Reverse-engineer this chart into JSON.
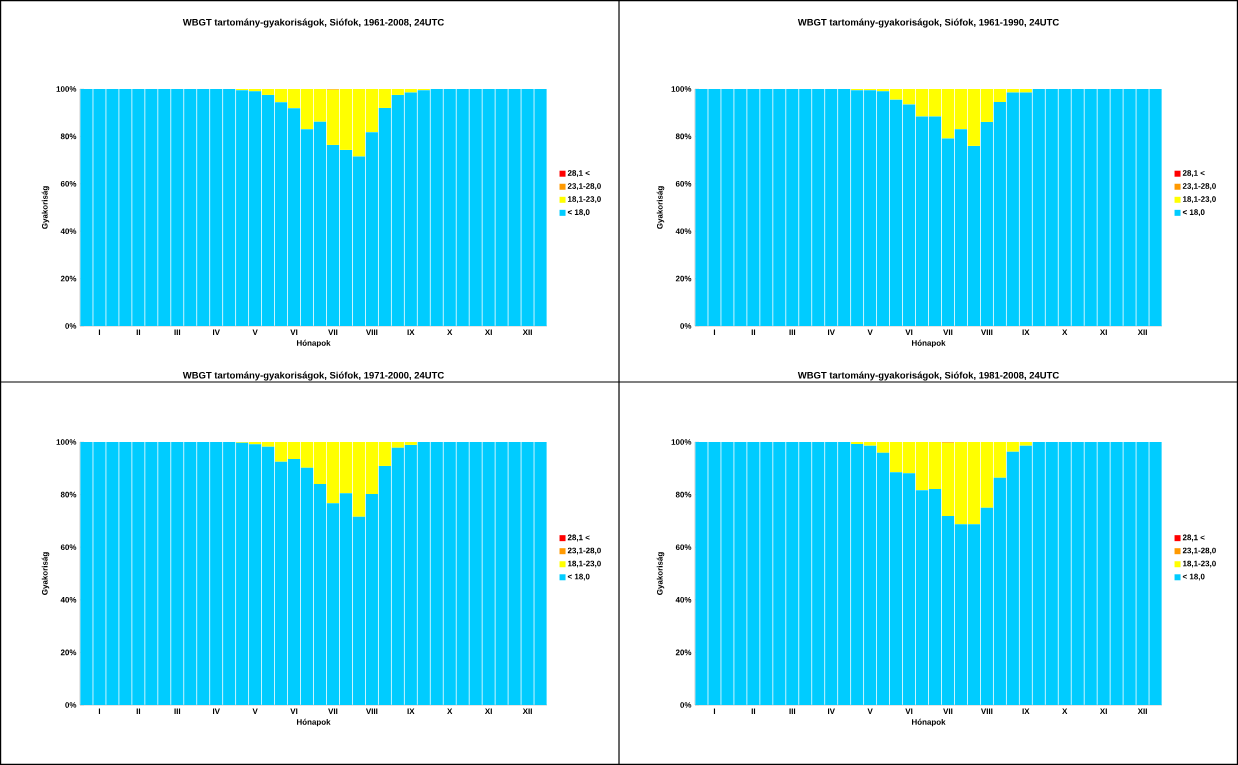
{
  "chart_data": [
    {
      "type": "bar",
      "stacked": true,
      "title": "WBGT tartomány-gyakoriságok, Siófok, 1961-2008, 24UTC",
      "xlabel": "Hónapok",
      "ylabel": "Gyakoriság",
      "legend": "right",
      "categories": [
        null,
        "I",
        null,
        null,
        "II",
        null,
        null,
        "III",
        null,
        null,
        "IV",
        null,
        null,
        "V",
        null,
        null,
        "VI",
        null,
        null,
        "VII",
        null,
        null,
        "VIII",
        null,
        null,
        "IX",
        null,
        null,
        "X",
        null,
        null,
        "XI",
        null,
        null,
        "XII",
        null
      ],
      "ylim": [
        0,
        100
      ],
      "yticks": [
        {
          "value": 0,
          "label": "0%"
        },
        {
          "value": 20,
          "label": "20%"
        },
        {
          "value": 40,
          "label": "40%"
        },
        {
          "value": 60,
          "label": "60%"
        },
        {
          "value": 80,
          "label": "80%"
        },
        {
          "value": 100,
          "label": "100%"
        }
      ],
      "series": [
        {
          "name": "< 18,0",
          "color": "#00ccff",
          "values": [
            100,
            100,
            100,
            100,
            100,
            100,
            100,
            100,
            100,
            100,
            100,
            100,
            99.5,
            99.0,
            97.5,
            94.4,
            91.9,
            83.0,
            86.2,
            76.4,
            74.3,
            71.5,
            81.8,
            92.0,
            97.5,
            98.5,
            99.5,
            100,
            100,
            100,
            100,
            100,
            100,
            100,
            100,
            100
          ]
        },
        {
          "name": "18,1-23,0",
          "color": "#ffff00",
          "values": [
            0,
            0,
            0,
            0,
            0,
            0,
            0,
            0,
            0,
            0,
            0,
            0,
            0.5,
            1.0,
            2.5,
            5.6,
            8.1,
            17.0,
            13.8,
            23.3,
            25.7,
            28.5,
            18.2,
            8.0,
            2.5,
            1.5,
            0.5,
            0,
            0,
            0,
            0,
            0,
            0,
            0,
            0,
            0
          ]
        },
        {
          "name": "23,1-28,0",
          "color": "#ff9900",
          "values": [
            0,
            0,
            0,
            0,
            0,
            0,
            0,
            0,
            0,
            0,
            0,
            0,
            0,
            0,
            0,
            0,
            0,
            0,
            0,
            0.3,
            0,
            0,
            0,
            0,
            0,
            0,
            0,
            0,
            0,
            0,
            0,
            0,
            0,
            0,
            0,
            0
          ]
        },
        {
          "name": "28,1 <",
          "color": "#ff0000",
          "values": [
            0,
            0,
            0,
            0,
            0,
            0,
            0,
            0,
            0,
            0,
            0,
            0,
            0,
            0,
            0,
            0,
            0,
            0,
            0,
            0,
            0,
            0,
            0,
            0,
            0,
            0,
            0,
            0,
            0,
            0,
            0,
            0,
            0,
            0,
            0,
            0
          ]
        }
      ]
    },
    {
      "type": "bar",
      "stacked": true,
      "title": "WBGT tartomány-gyakoriságok, Siófok, 1961-1990, 24UTC",
      "xlabel": "Hónapok",
      "ylabel": "Gyakoriság",
      "legend": "right",
      "categories": [
        null,
        "I",
        null,
        null,
        "II",
        null,
        null,
        "III",
        null,
        null,
        "IV",
        null,
        null,
        "V",
        null,
        null,
        "VI",
        null,
        null,
        "VII",
        null,
        null,
        "VIII",
        null,
        null,
        "IX",
        null,
        null,
        "X",
        null,
        null,
        "XI",
        null,
        null,
        "XII",
        null
      ],
      "ylim": [
        0,
        100
      ],
      "yticks": [
        {
          "value": 0,
          "label": "0%"
        },
        {
          "value": 20,
          "label": "20%"
        },
        {
          "value": 40,
          "label": "40%"
        },
        {
          "value": 60,
          "label": "60%"
        },
        {
          "value": 80,
          "label": "80%"
        },
        {
          "value": 100,
          "label": "100%"
        }
      ],
      "series": [
        {
          "name": "< 18,0",
          "color": "#00ccff",
          "values": [
            100,
            100,
            100,
            100,
            100,
            100,
            100,
            100,
            100,
            100,
            100,
            100,
            99.5,
            99.5,
            99.0,
            95.5,
            93.5,
            88.4,
            88.4,
            79.1,
            83.0,
            76.0,
            86.1,
            94.5,
            98.5,
            98.5,
            100,
            100,
            100,
            100,
            100,
            100,
            100,
            100,
            100,
            100
          ]
        },
        {
          "name": "18,1-23,0",
          "color": "#ffff00",
          "values": [
            0,
            0,
            0,
            0,
            0,
            0,
            0,
            0,
            0,
            0,
            0,
            0,
            0.5,
            0.5,
            1.0,
            4.5,
            6.5,
            11.6,
            11.6,
            20.9,
            17.0,
            24.0,
            13.9,
            5.5,
            1.5,
            1.5,
            0,
            0,
            0,
            0,
            0,
            0,
            0,
            0,
            0,
            0
          ]
        },
        {
          "name": "23,1-28,0",
          "color": "#ff9900",
          "values": [
            0,
            0,
            0,
            0,
            0,
            0,
            0,
            0,
            0,
            0,
            0,
            0,
            0,
            0,
            0,
            0,
            0,
            0,
            0,
            0,
            0,
            0,
            0,
            0,
            0,
            0,
            0,
            0,
            0,
            0,
            0,
            0,
            0,
            0,
            0,
            0
          ]
        },
        {
          "name": "28,1 <",
          "color": "#ff0000",
          "values": [
            0,
            0,
            0,
            0,
            0,
            0,
            0,
            0,
            0,
            0,
            0,
            0,
            0,
            0,
            0,
            0,
            0,
            0,
            0,
            0,
            0,
            0,
            0,
            0,
            0,
            0,
            0,
            0,
            0,
            0,
            0,
            0,
            0,
            0,
            0,
            0
          ]
        }
      ]
    },
    {
      "type": "bar",
      "stacked": true,
      "title": "WBGT tartomány-gyakoriságok, Siófok, 1971-2000, 24UTC",
      "xlabel": "Hónapok",
      "ylabel": "Gyakoriság",
      "legend": "right",
      "categories": [
        null,
        "I",
        null,
        null,
        "II",
        null,
        null,
        "III",
        null,
        null,
        "IV",
        null,
        null,
        "V",
        null,
        null,
        "VI",
        null,
        null,
        "VII",
        null,
        null,
        "VIII",
        null,
        null,
        "IX",
        null,
        null,
        "X",
        null,
        null,
        "XI",
        null,
        null,
        "XII",
        null
      ],
      "ylim": [
        0,
        100
      ],
      "yticks": [
        {
          "value": 0,
          "label": "0%"
        },
        {
          "value": 20,
          "label": "20%"
        },
        {
          "value": 40,
          "label": "40%"
        },
        {
          "value": 60,
          "label": "60%"
        },
        {
          "value": 80,
          "label": "80%"
        },
        {
          "value": 100,
          "label": "100%"
        }
      ],
      "series": [
        {
          "name": "< 18,0",
          "color": "#00ccff",
          "values": [
            100,
            100,
            100,
            100,
            100,
            100,
            100,
            100,
            100,
            100,
            100,
            100,
            99.7,
            99.1,
            98.2,
            92.5,
            93.5,
            90.2,
            84.0,
            76.7,
            80.5,
            71.6,
            80.2,
            90.9,
            97.8,
            98.9,
            100,
            100,
            100,
            100,
            100,
            100,
            100,
            100,
            100,
            100
          ]
        },
        {
          "name": "18,1-23,0",
          "color": "#ffff00",
          "values": [
            0,
            0,
            0,
            0,
            0,
            0,
            0,
            0,
            0,
            0,
            0,
            0,
            0.3,
            0.9,
            1.8,
            7.5,
            6.5,
            9.8,
            16.0,
            23.3,
            19.5,
            28.4,
            19.8,
            9.1,
            2.2,
            1.1,
            0,
            0,
            0,
            0,
            0,
            0,
            0,
            0,
            0,
            0
          ]
        },
        {
          "name": "23,1-28,0",
          "color": "#ff9900",
          "values": [
            0,
            0,
            0,
            0,
            0,
            0,
            0,
            0,
            0,
            0,
            0,
            0,
            0,
            0,
            0,
            0,
            0,
            0,
            0,
            0,
            0,
            0,
            0,
            0,
            0,
            0,
            0,
            0,
            0,
            0,
            0,
            0,
            0,
            0,
            0,
            0
          ]
        },
        {
          "name": "28,1 <",
          "color": "#ff0000",
          "values": [
            0,
            0,
            0,
            0,
            0,
            0,
            0,
            0,
            0,
            0,
            0,
            0,
            0,
            0,
            0,
            0,
            0,
            0,
            0,
            0,
            0,
            0,
            0,
            0,
            0,
            0,
            0,
            0,
            0,
            0,
            0,
            0,
            0,
            0,
            0,
            0
          ]
        }
      ]
    },
    {
      "type": "bar",
      "stacked": true,
      "title": "WBGT tartomány-gyakoriságok, Siófok, 1981-2008, 24UTC",
      "xlabel": "Hónapok",
      "ylabel": "Gyakoriság",
      "legend": "right",
      "categories": [
        null,
        "I",
        null,
        null,
        "II",
        null,
        null,
        "III",
        null,
        null,
        "IV",
        null,
        null,
        "V",
        null,
        null,
        "VI",
        null,
        null,
        "VII",
        null,
        null,
        "VIII",
        null,
        null,
        "IX",
        null,
        null,
        "X",
        null,
        null,
        "XI",
        null,
        null,
        "XII",
        null
      ],
      "ylim": [
        0,
        100
      ],
      "yticks": [
        {
          "value": 0,
          "label": "0%"
        },
        {
          "value": 20,
          "label": "20%"
        },
        {
          "value": 40,
          "label": "40%"
        },
        {
          "value": 60,
          "label": "60%"
        },
        {
          "value": 80,
          "label": "80%"
        },
        {
          "value": 100,
          "label": "100%"
        }
      ],
      "series": [
        {
          "name": "< 18,0",
          "color": "#00ccff",
          "values": [
            100,
            100,
            100,
            100,
            100,
            100,
            100,
            100,
            100,
            100,
            100,
            100,
            99.2,
            98.6,
            95.9,
            88.5,
            88.1,
            81.7,
            82.1,
            71.9,
            68.7,
            68.7,
            75.0,
            86.4,
            96.3,
            98.6,
            100,
            100,
            100,
            100,
            100,
            100,
            100,
            100,
            100,
            100
          ]
        },
        {
          "name": "18,1-23,0",
          "color": "#ffff00",
          "values": [
            0,
            0,
            0,
            0,
            0,
            0,
            0,
            0,
            0,
            0,
            0,
            0,
            0.8,
            1.4,
            4.1,
            11.5,
            11.9,
            18.3,
            17.9,
            27.8,
            31.3,
            31.3,
            25.0,
            13.6,
            3.7,
            1.4,
            0,
            0,
            0,
            0,
            0,
            0,
            0,
            0,
            0,
            0
          ]
        },
        {
          "name": "23,1-28,0",
          "color": "#ff9900",
          "values": [
            0,
            0,
            0,
            0,
            0,
            0,
            0,
            0,
            0,
            0,
            0,
            0,
            0,
            0,
            0,
            0,
            0,
            0,
            0,
            0.3,
            0,
            0,
            0,
            0,
            0,
            0,
            0,
            0,
            0,
            0,
            0,
            0,
            0,
            0,
            0,
            0
          ]
        },
        {
          "name": "28,1 <",
          "color": "#ff0000",
          "values": [
            0,
            0,
            0,
            0,
            0,
            0,
            0,
            0,
            0,
            0,
            0,
            0,
            0,
            0,
            0,
            0,
            0,
            0,
            0,
            0,
            0,
            0,
            0,
            0,
            0,
            0,
            0,
            0,
            0,
            0,
            0,
            0,
            0,
            0,
            0,
            0
          ]
        }
      ]
    }
  ]
}
